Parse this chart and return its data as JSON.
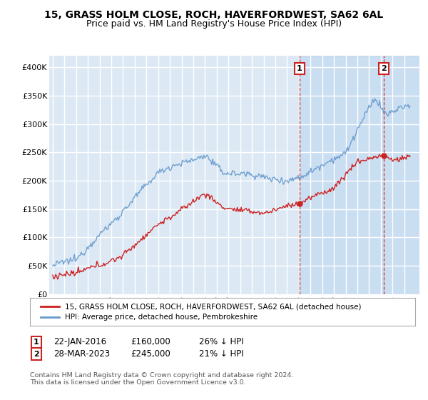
{
  "title": "15, GRASS HOLM CLOSE, ROCH, HAVERFORDWEST, SA62 6AL",
  "subtitle": "Price paid vs. HM Land Registry's House Price Index (HPI)",
  "ylim": [
    0,
    420000
  ],
  "yticks": [
    0,
    50000,
    100000,
    150000,
    200000,
    250000,
    300000,
    350000,
    400000
  ],
  "hpi_color": "#6699cc",
  "price_color": "#cc2222",
  "marker1_date": 2016.06,
  "marker2_date": 2023.24,
  "marker1_price": 160000,
  "marker2_price": 245000,
  "legend_label1": "15, GRASS HOLM CLOSE, ROCH, HAVERFORDWEST, SA62 6AL (detached house)",
  "legend_label2": "HPI: Average price, detached house, Pembrokeshire",
  "footnote": "Contains HM Land Registry data © Crown copyright and database right 2024.\nThis data is licensed under the Open Government Licence v3.0.",
  "background_color": "#dce9f5",
  "shaded_color": "#dce9f5",
  "grid_color": "#ffffff",
  "title_fontsize": 10,
  "subtitle_fontsize": 9
}
